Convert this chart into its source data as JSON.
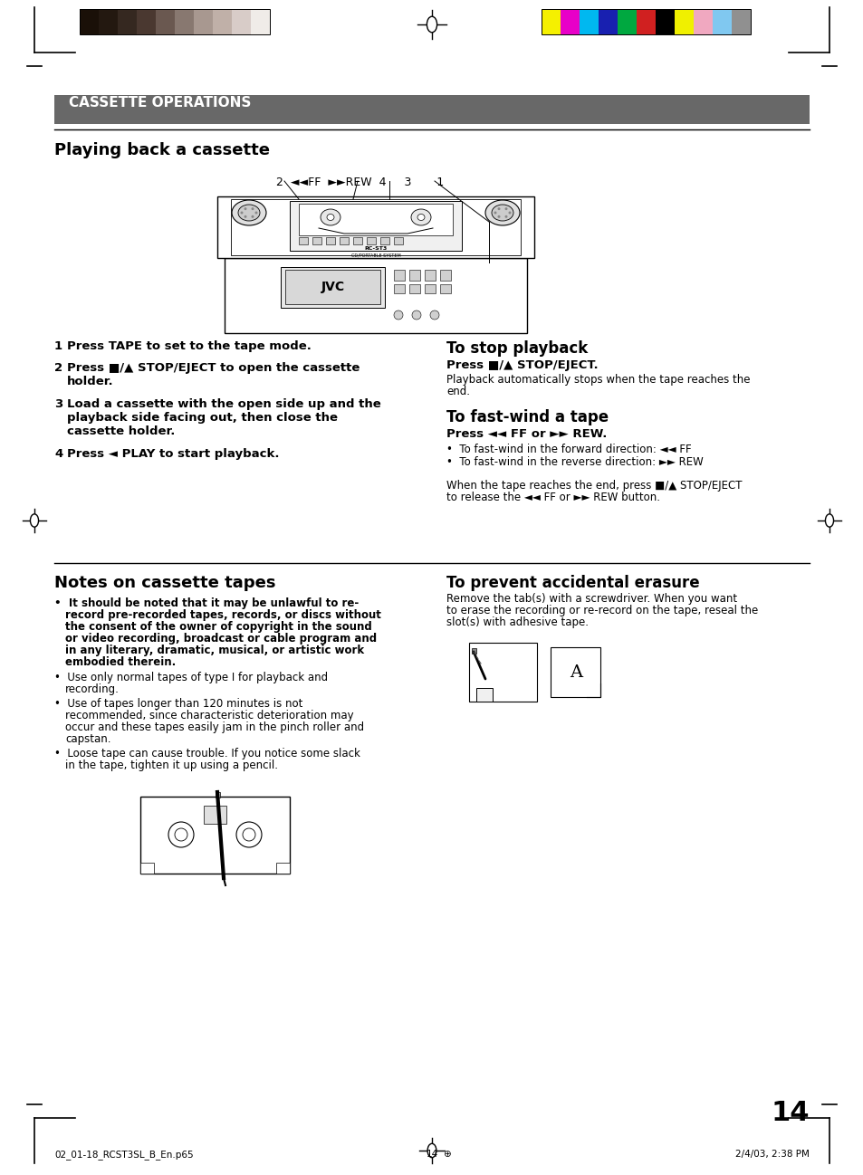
{
  "page_number": "14",
  "footer_left": "02_01-18_RCST3SL_B_En.p65",
  "footer_right": "2/4/03, 2:38 PM",
  "header_title": "CASSETTE OPERATIONS",
  "header_bg": "#686868",
  "header_text_color": "#ffffff",
  "section1_title": "Playing back a cassette",
  "color_bars_left": [
    "#1a1008",
    "#231810",
    "#352820",
    "#4a3830",
    "#6a5850",
    "#887870",
    "#a89890",
    "#c0b0a8",
    "#d8ccc8",
    "#f0ece8"
  ],
  "color_bars_right": [
    "#f5f000",
    "#e800c8",
    "#00b8f0",
    "#1820b0",
    "#00a840",
    "#d02020",
    "#000000",
    "#f0f000",
    "#f0a8c0",
    "#80c8f0",
    "#909090"
  ],
  "step1": "Press TAPE to set to the tape mode.",
  "step2a": "Press ■/▲ STOP/EJECT to open the cassette",
  "step2b": "holder.",
  "step3a": "Load a cassette with the open side up and the",
  "step3b": "playback side facing out, then close the",
  "step3c": "cassette holder.",
  "step4": "Press ◄ PLAY to start playback.",
  "right1_title": "To stop playback",
  "right1_sub": "Press ■/▲ STOP/EJECT.",
  "right1_body1": "Playback automatically stops when the tape reaches the",
  "right1_body2": "end.",
  "right2_title": "To fast-wind a tape",
  "right2_sub": "Press ◄◄ FF or ►► REW.",
  "right2_b1": "•  To fast-wind in the forward direction: ◄◄ FF",
  "right2_b2": "•  To fast-wind in the reverse direction: ►► REW",
  "right2_foot1": "When the tape reaches the end, press ■/▲ STOP/EJECT",
  "right2_foot2": "to release the ◄◄ FF or ►► REW button.",
  "sec2_title": "Notes on cassette tapes",
  "note1a": "•  It should be noted that it may be unlawful to re-",
  "note1b": "record pre-recorded tapes, records, or discs without",
  "note1c": "the consent of the owner of copyright in the sound",
  "note1d": "or video recording, broadcast or cable program and",
  "note1e": "in any literary, dramatic, musical, or artistic work",
  "note1f": "embodied therein.",
  "note2a": "•  Use only normal tapes of type I for playback and",
  "note2b": "recording.",
  "note3a": "•  Use of tapes longer than 120 minutes is not",
  "note3b": "recommended, since characteristic deterioration may",
  "note3c": "occur and these tapes easily jam in the pinch roller and",
  "note3d": "capstan.",
  "note4a": "•  Loose tape can cause trouble. If you notice some slack",
  "note4b": "in the tape, tighten it up using a pencil.",
  "prev_title": "To prevent accidental erasure",
  "prev1": "Remove the tab(s) with a screwdriver. When you want",
  "prev2": "to erase the recording or re-record on the tape, reseal the",
  "prev3": "slot(s) with adhesive tape.",
  "diagram_label": "2  ◄◄FF  ►►REW  4     3       1"
}
